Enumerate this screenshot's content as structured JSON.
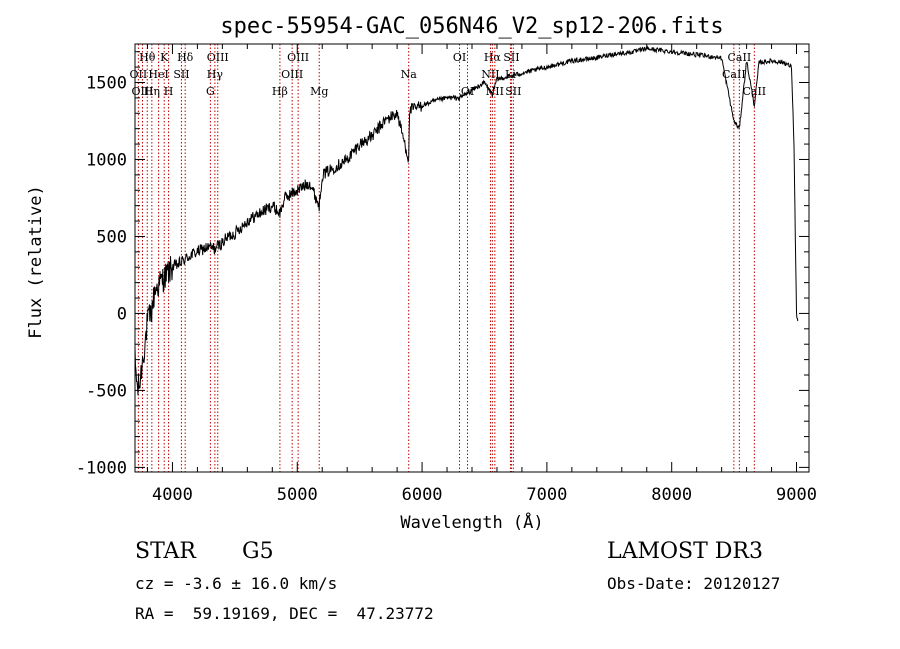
{
  "chart_data": {
    "type": "line",
    "title": "spec-55954-GAC_056N46_V2_sp12-206.fits",
    "xlabel": "Wavelength (Å)",
    "ylabel": "Flux (relative)",
    "xlim": [
      3700,
      9100
    ],
    "ylim": [
      -1030,
      1750
    ],
    "xticks": [
      4000,
      5000,
      6000,
      7000,
      8000,
      9000
    ],
    "yticks": [
      -1000,
      -500,
      0,
      500,
      1000,
      1500
    ],
    "series": [
      {
        "name": "flux",
        "x": [
          3700,
          3720,
          3740,
          3760,
          3780,
          3800,
          3830,
          3860,
          3900,
          3950,
          4000,
          4050,
          4100,
          4150,
          4200,
          4250,
          4300,
          4340,
          4400,
          4450,
          4500,
          4600,
          4700,
          4800,
          4861,
          4900,
          5000,
          5100,
          5176,
          5200,
          5300,
          5400,
          5500,
          5600,
          5700,
          5800,
          5893,
          5900,
          6000,
          6100,
          6200,
          6300,
          6400,
          6500,
          6563,
          6600,
          6700,
          6800,
          6900,
          7000,
          7100,
          7200,
          7300,
          7400,
          7500,
          7600,
          7700,
          7800,
          7900,
          8000,
          8100,
          8200,
          8300,
          8400,
          8498,
          8542,
          8600,
          8662,
          8700,
          8800,
          8900,
          8960,
          8980,
          8990,
          9000,
          9010
        ],
        "y": [
          -300,
          -500,
          -450,
          -300,
          -200,
          -50,
          0,
          150,
          200,
          250,
          300,
          320,
          350,
          380,
          400,
          420,
          430,
          420,
          460,
          500,
          520,
          600,
          650,
          700,
          650,
          750,
          800,
          850,
          700,
          900,
          950,
          1000,
          1100,
          1150,
          1250,
          1300,
          1000,
          1320,
          1350,
          1380,
          1400,
          1400,
          1450,
          1500,
          1420,
          1520,
          1540,
          1560,
          1580,
          1600,
          1620,
          1640,
          1650,
          1660,
          1680,
          1690,
          1700,
          1720,
          1710,
          1700,
          1690,
          1680,
          1670,
          1660,
          1250,
          1200,
          1640,
          1350,
          1630,
          1640,
          1630,
          1600,
          1100,
          500,
          0,
          -50
        ]
      }
    ],
    "line_markers": [
      {
        "label": "Hθ",
        "x": 3798,
        "row": 1
      },
      {
        "label": "OII",
        "x": 3727,
        "row": 2
      },
      {
        "label": "OIII",
        "x": 3760,
        "row": 3
      },
      {
        "label": "K",
        "x": 3934,
        "row": 1
      },
      {
        "label": "HeI",
        "x": 3889,
        "row": 2
      },
      {
        "label": "Hη",
        "x": 3835,
        "row": 3
      },
      {
        "label": "SII",
        "x": 4072,
        "row": 2
      },
      {
        "label": "H",
        "x": 3969,
        "row": 3
      },
      {
        "label": "Hδ",
        "x": 4102,
        "row": 1
      },
      {
        "label": "OIII",
        "x": 4363,
        "row": 1
      },
      {
        "label": "Hγ",
        "x": 4340,
        "row": 2
      },
      {
        "label": "G",
        "x": 4304,
        "row": 3
      },
      {
        "label": "OIII",
        "x": 5007,
        "row": 1
      },
      {
        "label": "OIII",
        "x": 4959,
        "row": 2
      },
      {
        "label": "Hβ",
        "x": 4861,
        "row": 3
      },
      {
        "label": "Mg",
        "x": 5176,
        "row": 3
      },
      {
        "label": "Na",
        "x": 5893,
        "row": 2
      },
      {
        "label": "OI",
        "x": 6300,
        "row": 1
      },
      {
        "label": "OI",
        "x": 6364,
        "row": 3
      },
      {
        "label": "Hα",
        "x": 6563,
        "row": 1
      },
      {
        "label": "SII",
        "x": 6716,
        "row": 1
      },
      {
        "label": "NII",
        "x": 6548,
        "row": 2
      },
      {
        "label": "NII",
        "x": 6583,
        "row": 3
      },
      {
        "label": "Li",
        "x": 6708,
        "row": 2
      },
      {
        "label": "SII",
        "x": 6731,
        "row": 3
      },
      {
        "label": "CaII",
        "x": 8542,
        "row": 1
      },
      {
        "label": "CaII",
        "x": 8498,
        "row": 2
      },
      {
        "label": "CaII",
        "x": 8662,
        "row": 3
      }
    ]
  },
  "info": {
    "object_class": "STAR",
    "subclass": "G5",
    "survey": "LAMOST DR3",
    "cz": "cz = -3.6 ± 16.0 km/s",
    "obs_date": "Obs-Date: 20120127",
    "radec": "RA =  59.19169, DEC =  47.23772"
  },
  "colors": {
    "spectrum": "#000000",
    "line_markers": "#c00000",
    "axes": "#000000"
  }
}
